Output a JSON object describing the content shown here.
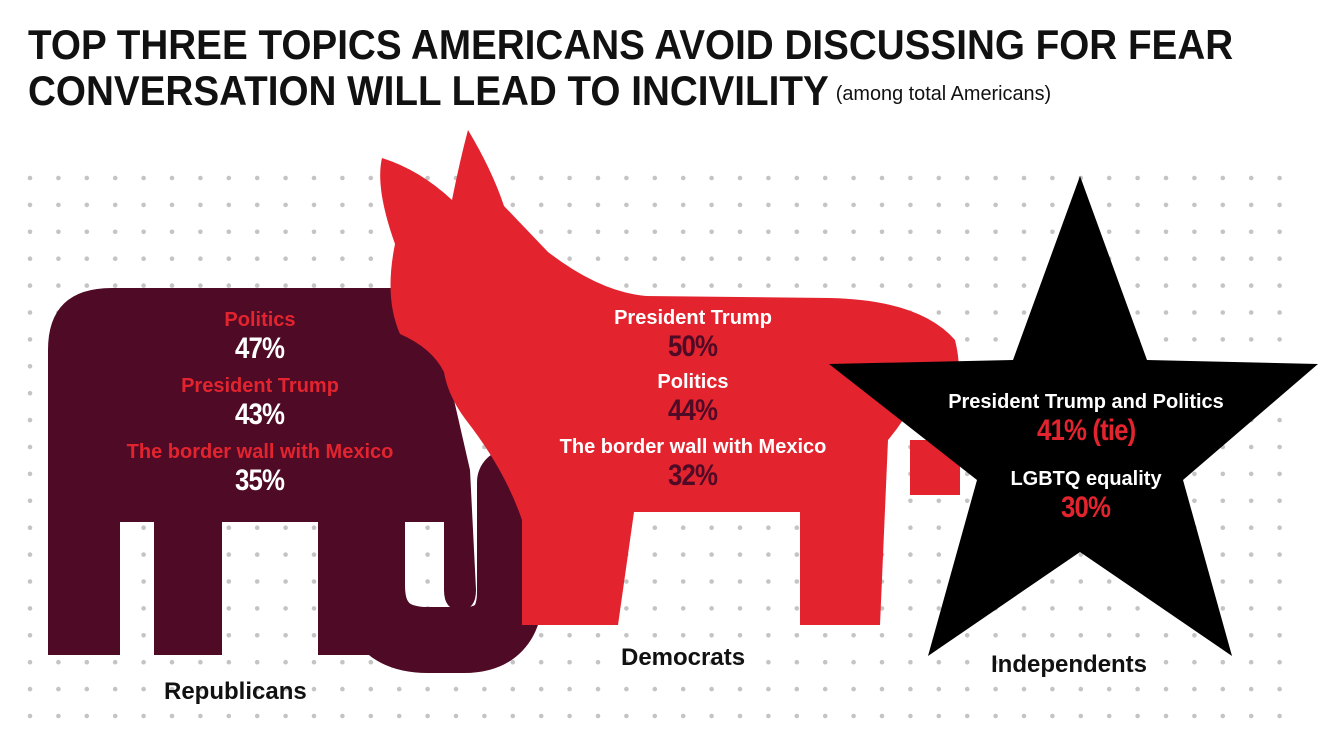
{
  "title": {
    "line1": "TOP THREE TOPICS AMERICANS AVOID DISCUSSING FOR FEAR",
    "line2": "CONVERSATION WILL LEAD TO INCIVILITY",
    "subtitle": "(among total Americans)"
  },
  "colors": {
    "republican": "#4f0a25",
    "democrat": "#e3242f",
    "independent": "#000000",
    "label_red": "#e3242f",
    "label_white": "#ffffff",
    "pct_dark": "#4f0a25",
    "dots": "#c4c4c4"
  },
  "icons": {
    "republican": "elephant-icon",
    "democrat": "donkey-icon",
    "independent": "star-icon"
  },
  "groups": [
    {
      "party": "Republicans",
      "topics": [
        {
          "label": "Politics",
          "value": "47%"
        },
        {
          "label": "President Trump",
          "value": "43%"
        },
        {
          "label": "The border wall with Mexico",
          "value": "35%"
        }
      ]
    },
    {
      "party": "Democrats",
      "topics": [
        {
          "label": "President Trump",
          "value": "50%"
        },
        {
          "label": "Politics",
          "value": "44%"
        },
        {
          "label": "The border wall with Mexico",
          "value": "32%"
        }
      ]
    },
    {
      "party": "Independents",
      "topics": [
        {
          "label": "President Trump and Politics",
          "value": "41% (tie)"
        },
        {
          "label": "LGBTQ equality",
          "value": "30%"
        }
      ]
    }
  ],
  "chart_data": {
    "type": "table",
    "title": "TOP THREE TOPICS AMERICANS AVOID DISCUSSING FOR FEAR CONVERSATION WILL LEAD TO INCIVILITY",
    "subtitle": "(among total Americans)",
    "series": [
      {
        "name": "Republicans",
        "categories": [
          "Politics",
          "President Trump",
          "The border wall with Mexico"
        ],
        "values": [
          47,
          43,
          35
        ]
      },
      {
        "name": "Democrats",
        "categories": [
          "President Trump",
          "Politics",
          "The border wall with Mexico"
        ],
        "values": [
          50,
          44,
          32
        ]
      },
      {
        "name": "Independents",
        "categories": [
          "President Trump and Politics",
          "LGBTQ equality"
        ],
        "values": [
          41,
          30
        ]
      }
    ],
    "grid": false,
    "legend": "none"
  }
}
